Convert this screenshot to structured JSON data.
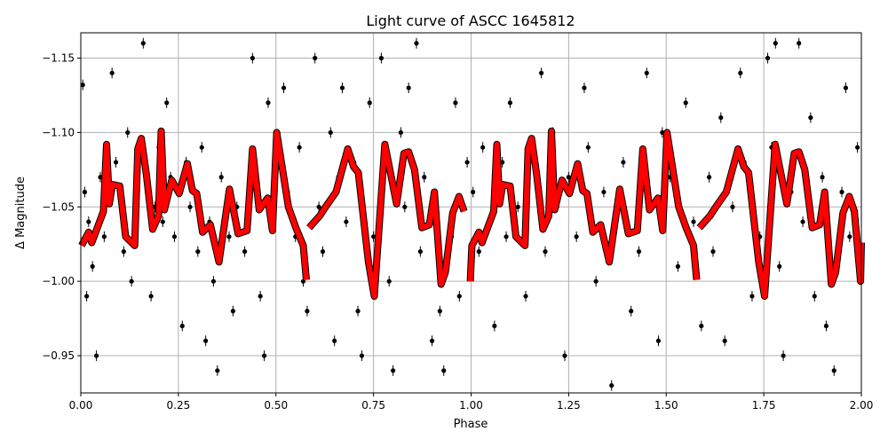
{
  "chart_data": {
    "type": "scatter",
    "title": "Light curve of ASCC 1645812",
    "xlabel": "Phase",
    "ylabel": "Δ Magnitude",
    "xlim": [
      0,
      2
    ],
    "ylim": [
      -0.925,
      -1.167
    ],
    "y_inverted": true,
    "grid": true,
    "xticks": [
      0,
      0.25,
      0.5,
      0.75,
      1.0,
      1.25,
      1.5,
      1.75,
      2.0
    ],
    "xtick_labels": [
      "0.00",
      "0.25",
      "0.50",
      "0.75",
      "1.00",
      "1.25",
      "1.50",
      "1.75",
      "2.00"
    ],
    "yticks": [
      -1.15,
      -1.1,
      -1.05,
      -1.0,
      -0.95
    ],
    "ytick_labels": [
      "−1.15",
      "−1.10",
      "−1.05",
      "−1.00",
      "−0.95"
    ],
    "colors": {
      "points": "#000000",
      "fit": "#ff0000",
      "grid": "#b0b0b0"
    },
    "fit_curve": {
      "color": "#ff0000",
      "segments": [
        [
          [
            0.002,
            -1.024
          ],
          [
            0.02,
            -1.033
          ],
          [
            0.028,
            -1.026
          ],
          [
            0.058,
            -1.047
          ],
          [
            0.066,
            -1.092
          ],
          [
            0.073,
            -1.052
          ],
          [
            0.081,
            -1.065
          ],
          [
            0.1,
            -1.064
          ],
          [
            0.115,
            -1.03
          ],
          [
            0.138,
            -1.024
          ],
          [
            0.146,
            -1.089
          ],
          [
            0.155,
            -1.096
          ],
          [
            0.168,
            -1.072
          ],
          [
            0.184,
            -1.035
          ],
          [
            0.199,
            -1.044
          ],
          [
            0.206,
            -1.101
          ],
          [
            0.214,
            -1.048
          ],
          [
            0.233,
            -1.068
          ],
          [
            0.252,
            -1.059
          ],
          [
            0.273,
            -1.079
          ],
          [
            0.286,
            -1.061
          ],
          [
            0.297,
            -1.059
          ],
          [
            0.312,
            -1.033
          ],
          [
            0.332,
            -1.038
          ],
          [
            0.354,
            -1.013
          ],
          [
            0.381,
            -1.062
          ],
          [
            0.403,
            -1.032
          ],
          [
            0.426,
            -1.034
          ],
          [
            0.44,
            -1.089
          ],
          [
            0.457,
            -1.048
          ],
          [
            0.479,
            -1.056
          ],
          [
            0.491,
            -1.034
          ],
          [
            0.502,
            -1.1
          ],
          [
            0.532,
            -1.05
          ],
          [
            0.551,
            -1.036
          ],
          [
            0.57,
            -1.024
          ],
          [
            0.578,
            -1.001
          ]
        ],
        [
          [
            0.585,
            -1.036
          ],
          [
            0.612,
            -1.044
          ],
          [
            0.627,
            -1.05
          ],
          [
            0.654,
            -1.06
          ],
          [
            0.684,
            -1.089
          ],
          [
            0.699,
            -1.077
          ],
          [
            0.711,
            -1.073
          ],
          [
            0.737,
            -1.013
          ],
          [
            0.752,
            -0.99
          ],
          [
            0.779,
            -1.092
          ],
          [
            0.809,
            -1.052
          ],
          [
            0.828,
            -1.086
          ],
          [
            0.84,
            -1.087
          ],
          [
            0.855,
            -1.075
          ],
          [
            0.874,
            -1.036
          ],
          [
            0.893,
            -1.038
          ],
          [
            0.906,
            -1.06
          ],
          [
            0.923,
            -0.998
          ],
          [
            0.934,
            -1.006
          ],
          [
            0.953,
            -1.046
          ],
          [
            0.969,
            -1.057
          ],
          [
            0.982,
            -1.047
          ]
        ],
        [
          [
            0.998,
            -1.0
          ],
          [
            1.002,
            -1.024
          ],
          [
            1.02,
            -1.033
          ],
          [
            1.028,
            -1.026
          ],
          [
            1.058,
            -1.047
          ],
          [
            1.066,
            -1.092
          ],
          [
            1.073,
            -1.052
          ],
          [
            1.081,
            -1.065
          ],
          [
            1.1,
            -1.064
          ],
          [
            1.115,
            -1.03
          ],
          [
            1.138,
            -1.024
          ],
          [
            1.146,
            -1.089
          ],
          [
            1.155,
            -1.096
          ],
          [
            1.168,
            -1.072
          ],
          [
            1.184,
            -1.035
          ],
          [
            1.199,
            -1.044
          ],
          [
            1.206,
            -1.101
          ],
          [
            1.214,
            -1.048
          ],
          [
            1.233,
            -1.068
          ],
          [
            1.252,
            -1.059
          ],
          [
            1.273,
            -1.079
          ],
          [
            1.286,
            -1.061
          ],
          [
            1.297,
            -1.059
          ],
          [
            1.312,
            -1.033
          ],
          [
            1.332,
            -1.038
          ],
          [
            1.354,
            -1.013
          ],
          [
            1.381,
            -1.062
          ],
          [
            1.403,
            -1.032
          ],
          [
            1.426,
            -1.034
          ],
          [
            1.44,
            -1.089
          ],
          [
            1.457,
            -1.048
          ],
          [
            1.479,
            -1.056
          ],
          [
            1.491,
            -1.034
          ],
          [
            1.502,
            -1.1
          ],
          [
            1.532,
            -1.05
          ],
          [
            1.551,
            -1.036
          ],
          [
            1.57,
            -1.024
          ],
          [
            1.578,
            -1.001
          ]
        ],
        [
          [
            1.585,
            -1.036
          ],
          [
            1.612,
            -1.044
          ],
          [
            1.627,
            -1.05
          ],
          [
            1.654,
            -1.06
          ],
          [
            1.684,
            -1.089
          ],
          [
            1.699,
            -1.077
          ],
          [
            1.711,
            -1.073
          ],
          [
            1.737,
            -1.013
          ],
          [
            1.752,
            -0.99
          ],
          [
            1.779,
            -1.092
          ],
          [
            1.809,
            -1.052
          ],
          [
            1.828,
            -1.086
          ],
          [
            1.84,
            -1.087
          ],
          [
            1.855,
            -1.075
          ],
          [
            1.874,
            -1.036
          ],
          [
            1.893,
            -1.038
          ],
          [
            1.906,
            -1.06
          ],
          [
            1.923,
            -0.998
          ],
          [
            1.934,
            -1.006
          ],
          [
            1.953,
            -1.046
          ],
          [
            1.969,
            -1.057
          ],
          [
            1.982,
            -1.047
          ],
          [
            1.998,
            -1.0
          ],
          [
            2.0,
            -1.026
          ]
        ]
      ]
    },
    "points": [
      [
        0.005,
        -1.132
      ],
      [
        0.01,
        -1.06
      ],
      [
        0.015,
        -0.99
      ],
      [
        0.02,
        -1.04
      ],
      [
        0.03,
        -1.01
      ],
      [
        0.04,
        -0.95
      ],
      [
        0.05,
        -1.07
      ],
      [
        0.06,
        -1.03
      ],
      [
        0.08,
        -1.14
      ],
      [
        0.09,
        -1.08
      ],
      [
        0.1,
        -1.06
      ],
      [
        0.11,
        -1.02
      ],
      [
        0.12,
        -1.1
      ],
      [
        0.13,
        -1.0
      ],
      [
        0.14,
        -1.03
      ],
      [
        0.16,
        -1.16
      ],
      [
        0.17,
        -1.06
      ],
      [
        0.18,
        -0.99
      ],
      [
        0.19,
        -1.05
      ],
      [
        0.2,
        -1.09
      ],
      [
        0.21,
        -1.04
      ],
      [
        0.22,
        -1.12
      ],
      [
        0.23,
        -1.07
      ],
      [
        0.24,
        -1.03
      ],
      [
        0.25,
        -1.06
      ],
      [
        0.26,
        -0.97
      ],
      [
        0.27,
        -1.08
      ],
      [
        0.28,
        -1.05
      ],
      [
        0.3,
        -1.02
      ],
      [
        0.31,
        -1.09
      ],
      [
        0.32,
        -0.96
      ],
      [
        0.33,
        -1.04
      ],
      [
        0.34,
        -1.0
      ],
      [
        0.35,
        -0.94
      ],
      [
        0.36,
        -1.07
      ],
      [
        0.38,
        -1.03
      ],
      [
        0.39,
        -0.98
      ],
      [
        0.4,
        -1.05
      ],
      [
        0.42,
        -1.02
      ],
      [
        0.44,
        -1.15
      ],
      [
        0.45,
        -1.06
      ],
      [
        0.46,
        -0.99
      ],
      [
        0.47,
        -0.95
      ],
      [
        0.48,
        -1.12
      ],
      [
        0.49,
        -1.04
      ],
      [
        0.5,
        -1.08
      ],
      [
        0.52,
        -1.13
      ],
      [
        0.53,
        -1.06
      ],
      [
        0.55,
        -1.03
      ],
      [
        0.56,
        -1.09
      ],
      [
        0.57,
        -1.0
      ],
      [
        0.58,
        -0.98
      ],
      [
        0.6,
        -1.15
      ],
      [
        0.61,
        -1.05
      ],
      [
        0.62,
        -1.02
      ],
      [
        0.64,
        -1.1
      ],
      [
        0.65,
        -0.96
      ],
      [
        0.66,
        -1.07
      ],
      [
        0.67,
        -1.13
      ],
      [
        0.68,
        -1.04
      ],
      [
        0.7,
        -1.08
      ],
      [
        0.71,
        -0.98
      ],
      [
        0.72,
        -0.95
      ],
      [
        0.74,
        -1.12
      ],
      [
        0.75,
        -1.03
      ],
      [
        0.77,
        -1.15
      ],
      [
        0.78,
        -1.08
      ],
      [
        0.79,
        -1.0
      ],
      [
        0.8,
        -0.94
      ],
      [
        0.82,
        -1.1
      ],
      [
        0.83,
        -1.05
      ],
      [
        0.84,
        -1.13
      ],
      [
        0.86,
        -1.16
      ],
      [
        0.87,
        -1.02
      ],
      [
        0.88,
        -1.07
      ],
      [
        0.9,
        -0.96
      ],
      [
        0.91,
        -1.05
      ],
      [
        0.92,
        -0.98
      ],
      [
        0.93,
        -0.94
      ],
      [
        0.95,
        -1.03
      ],
      [
        0.96,
        -1.12
      ],
      [
        0.97,
        -0.99
      ],
      [
        0.99,
        -1.08
      ],
      [
        1.005,
        -1.06
      ],
      [
        1.02,
        -1.02
      ],
      [
        1.03,
        -1.09
      ],
      [
        1.05,
        -1.04
      ],
      [
        1.06,
        -0.97
      ],
      [
        1.08,
        -1.08
      ],
      [
        1.09,
        -1.03
      ],
      [
        1.1,
        -1.12
      ],
      [
        1.12,
        -1.05
      ],
      [
        1.14,
        -0.99
      ],
      [
        1.16,
        -1.08
      ],
      [
        1.18,
        -1.14
      ],
      [
        1.19,
        -1.02
      ],
      [
        1.21,
        -1.1
      ],
      [
        1.22,
        -1.05
      ],
      [
        1.24,
        -0.95
      ],
      [
        1.25,
        -1.07
      ],
      [
        1.27,
        -1.03
      ],
      [
        1.29,
        -1.13
      ],
      [
        1.3,
        -1.09
      ],
      [
        1.32,
        -1.0
      ],
      [
        1.34,
        -1.06
      ],
      [
        1.36,
        -0.93
      ],
      [
        1.37,
        -1.04
      ],
      [
        1.39,
        -1.08
      ],
      [
        1.41,
        -0.98
      ],
      [
        1.43,
        -1.02
      ],
      [
        1.45,
        -1.14
      ],
      [
        1.46,
        -1.05
      ],
      [
        1.48,
        -0.96
      ],
      [
        1.49,
        -1.1
      ],
      [
        1.51,
        -1.07
      ],
      [
        1.53,
        -1.01
      ],
      [
        1.55,
        -1.12
      ],
      [
        1.57,
        -1.04
      ],
      [
        1.59,
        -0.97
      ],
      [
        1.61,
        -1.07
      ],
      [
        1.62,
        -1.02
      ],
      [
        1.64,
        -1.11
      ],
      [
        1.65,
        -0.96
      ],
      [
        1.67,
        -1.05
      ],
      [
        1.69,
        -1.14
      ],
      [
        1.7,
        -1.08
      ],
      [
        1.72,
        -0.99
      ],
      [
        1.74,
        -1.03
      ],
      [
        1.76,
        -1.15
      ],
      [
        1.77,
        -1.09
      ],
      [
        1.78,
        -1.16
      ],
      [
        1.79,
        -1.01
      ],
      [
        1.8,
        -0.95
      ],
      [
        1.82,
        -1.06
      ],
      [
        1.84,
        -1.16
      ],
      [
        1.85,
        -1.04
      ],
      [
        1.87,
        -1.11
      ],
      [
        1.88,
        -0.99
      ],
      [
        1.9,
        -1.07
      ],
      [
        1.91,
        -0.97
      ],
      [
        1.92,
        -1.02
      ],
      [
        1.93,
        -0.94
      ],
      [
        1.95,
        -1.06
      ],
      [
        1.96,
        -1.13
      ],
      [
        1.97,
        -1.03
      ],
      [
        1.99,
        -1.09
      ]
    ]
  }
}
